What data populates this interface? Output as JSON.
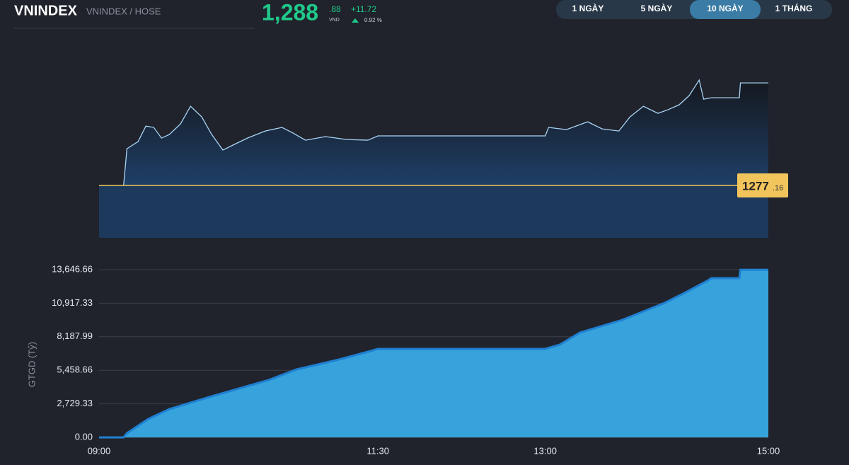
{
  "header": {
    "symbol": "VNINDEX",
    "exchange": "VNINDEX / HOSE",
    "price": "1,288",
    "price_decimals": ".88",
    "currency": "VND",
    "change": "+11.72",
    "change_percent": "0.92 %"
  },
  "tabs": {
    "items": [
      "1 NGÀY",
      "5 NGÀY",
      "10 NGÀY",
      "1 THÁNG"
    ],
    "active": 2
  },
  "chart_data": [
    {
      "type": "line",
      "x": [
        9.22,
        9.25,
        9.35,
        9.42,
        9.49,
        9.56,
        9.63,
        9.73,
        9.82,
        9.92,
        10.01,
        10.11,
        10.2,
        10.33,
        10.49,
        10.64,
        10.74,
        10.85,
        11.03,
        11.22,
        11.41,
        11.5,
        13.0,
        13.03,
        13.19,
        13.38,
        13.51,
        13.66,
        13.76,
        13.88,
        14.01,
        14.1,
        14.2,
        14.29,
        14.38,
        14.42,
        14.49,
        14.74,
        14.75,
        15.0
      ],
      "values": [
        1277.16,
        1281.36,
        1282.17,
        1283.95,
        1283.79,
        1282.57,
        1282.98,
        1284.19,
        1286.21,
        1285.0,
        1282.98,
        1281.2,
        1281.77,
        1282.57,
        1283.38,
        1283.79,
        1283.14,
        1282.33,
        1282.74,
        1282.41,
        1282.33,
        1282.82,
        1282.82,
        1283.79,
        1283.54,
        1284.43,
        1283.62,
        1283.38,
        1285.0,
        1286.21,
        1285.4,
        1285.81,
        1286.37,
        1287.42,
        1289.2,
        1287.02,
        1287.18,
        1287.18,
        1288.88,
        1288.88
      ],
      "color": "#a9d4f5",
      "xlim": [
        9,
        15
      ],
      "ylim": [
        1277.16,
        1293.5
      ],
      "reference_line": {
        "value": 1277.16,
        "label": [
          "1277",
          ".16"
        ],
        "color": "#f2c55c"
      }
    },
    {
      "type": "area",
      "y_label": "GTGD (Tỷ)",
      "x": [
        9.0,
        9.22,
        9.25,
        9.44,
        9.63,
        10.01,
        10.52,
        10.77,
        11.15,
        11.41,
        11.5,
        13.0,
        13.13,
        13.31,
        13.69,
        14.07,
        14.26,
        14.45,
        14.49,
        14.74,
        14.75,
        15.0
      ],
      "values": [
        0,
        0,
        345,
        1497,
        2303,
        3340,
        4664,
        5528,
        6334,
        6967,
        7198,
        7198,
        7543,
        8522,
        9558,
        10940,
        11804,
        12725,
        12956,
        12956,
        13640,
        13640
      ],
      "color": "#36a3dc",
      "line_color": "#1f7fd1",
      "xlim": [
        9,
        15
      ],
      "ylim": [
        0,
        14280
      ],
      "xticks": [
        {
          "value": 9,
          "label": "09:00"
        },
        {
          "value": 11.5,
          "label": "11:30"
        },
        {
          "value": 13,
          "label": "13:00"
        },
        {
          "value": 15,
          "label": "15:00"
        }
      ],
      "yticks": [
        {
          "value": 0,
          "label": "0.00"
        },
        {
          "value": 2729.33,
          "label": "2,729.33"
        },
        {
          "value": 5458.66,
          "label": "5,458.66"
        },
        {
          "value": 8187.99,
          "label": "8,187.99"
        },
        {
          "value": 10917.33,
          "label": "10,917.33"
        },
        {
          "value": 13646.66,
          "label": "13,646.66"
        }
      ],
      "grid": true
    }
  ]
}
